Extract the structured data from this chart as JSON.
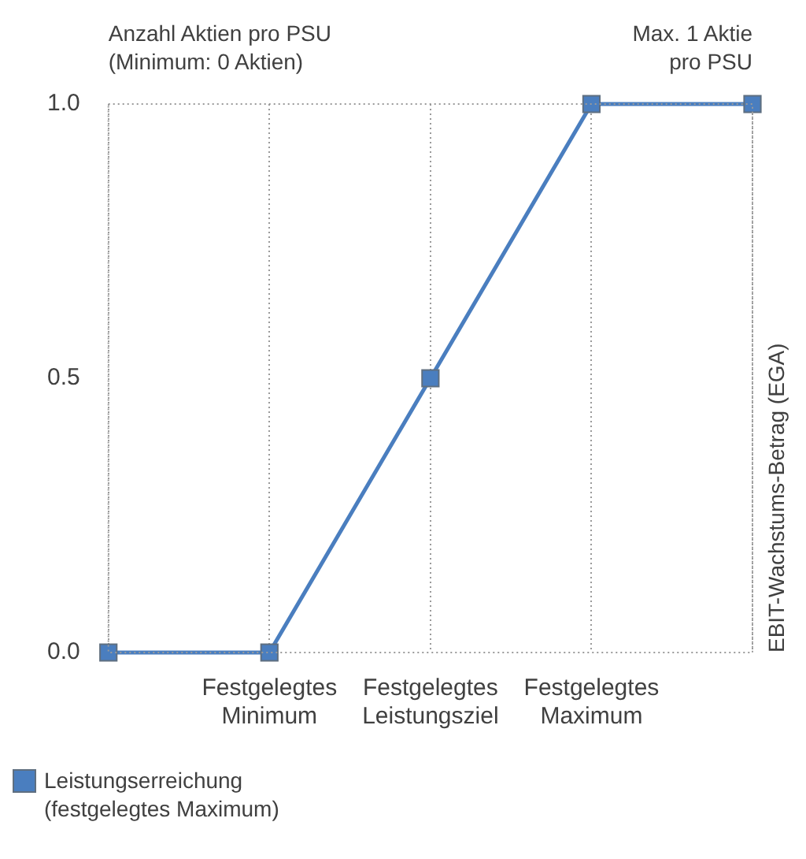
{
  "chart_data": {
    "type": "line",
    "ylabel": "Anzahl Aktien pro PSU\n(Minimum: 0 Aktien)",
    "y2label": "EBIT-Wachstums-Betrag (EGA)",
    "annotations": [
      "Max. 1 Aktie\npro PSU"
    ],
    "categories": [
      null,
      "Festgelegtes Minimum",
      "Festgelegtes Leistungsziel",
      "Festgelegtes Maximum",
      null
    ],
    "series": [
      {
        "name": "Leistungserreichung\n(festgelegtes Maximum)",
        "color": "#4a7ebf",
        "values": [
          0,
          0,
          0.5,
          1,
          1
        ]
      }
    ],
    "ylim": [
      0,
      1
    ],
    "yticks": [
      {
        "value": 0,
        "label": "0.0"
      },
      {
        "value": 0.5,
        "label": "0.5"
      },
      {
        "value": 1,
        "label": "1.0"
      }
    ],
    "grid": "x",
    "legend": "bottom left",
    "marker": "square",
    "line_style": "solid"
  }
}
